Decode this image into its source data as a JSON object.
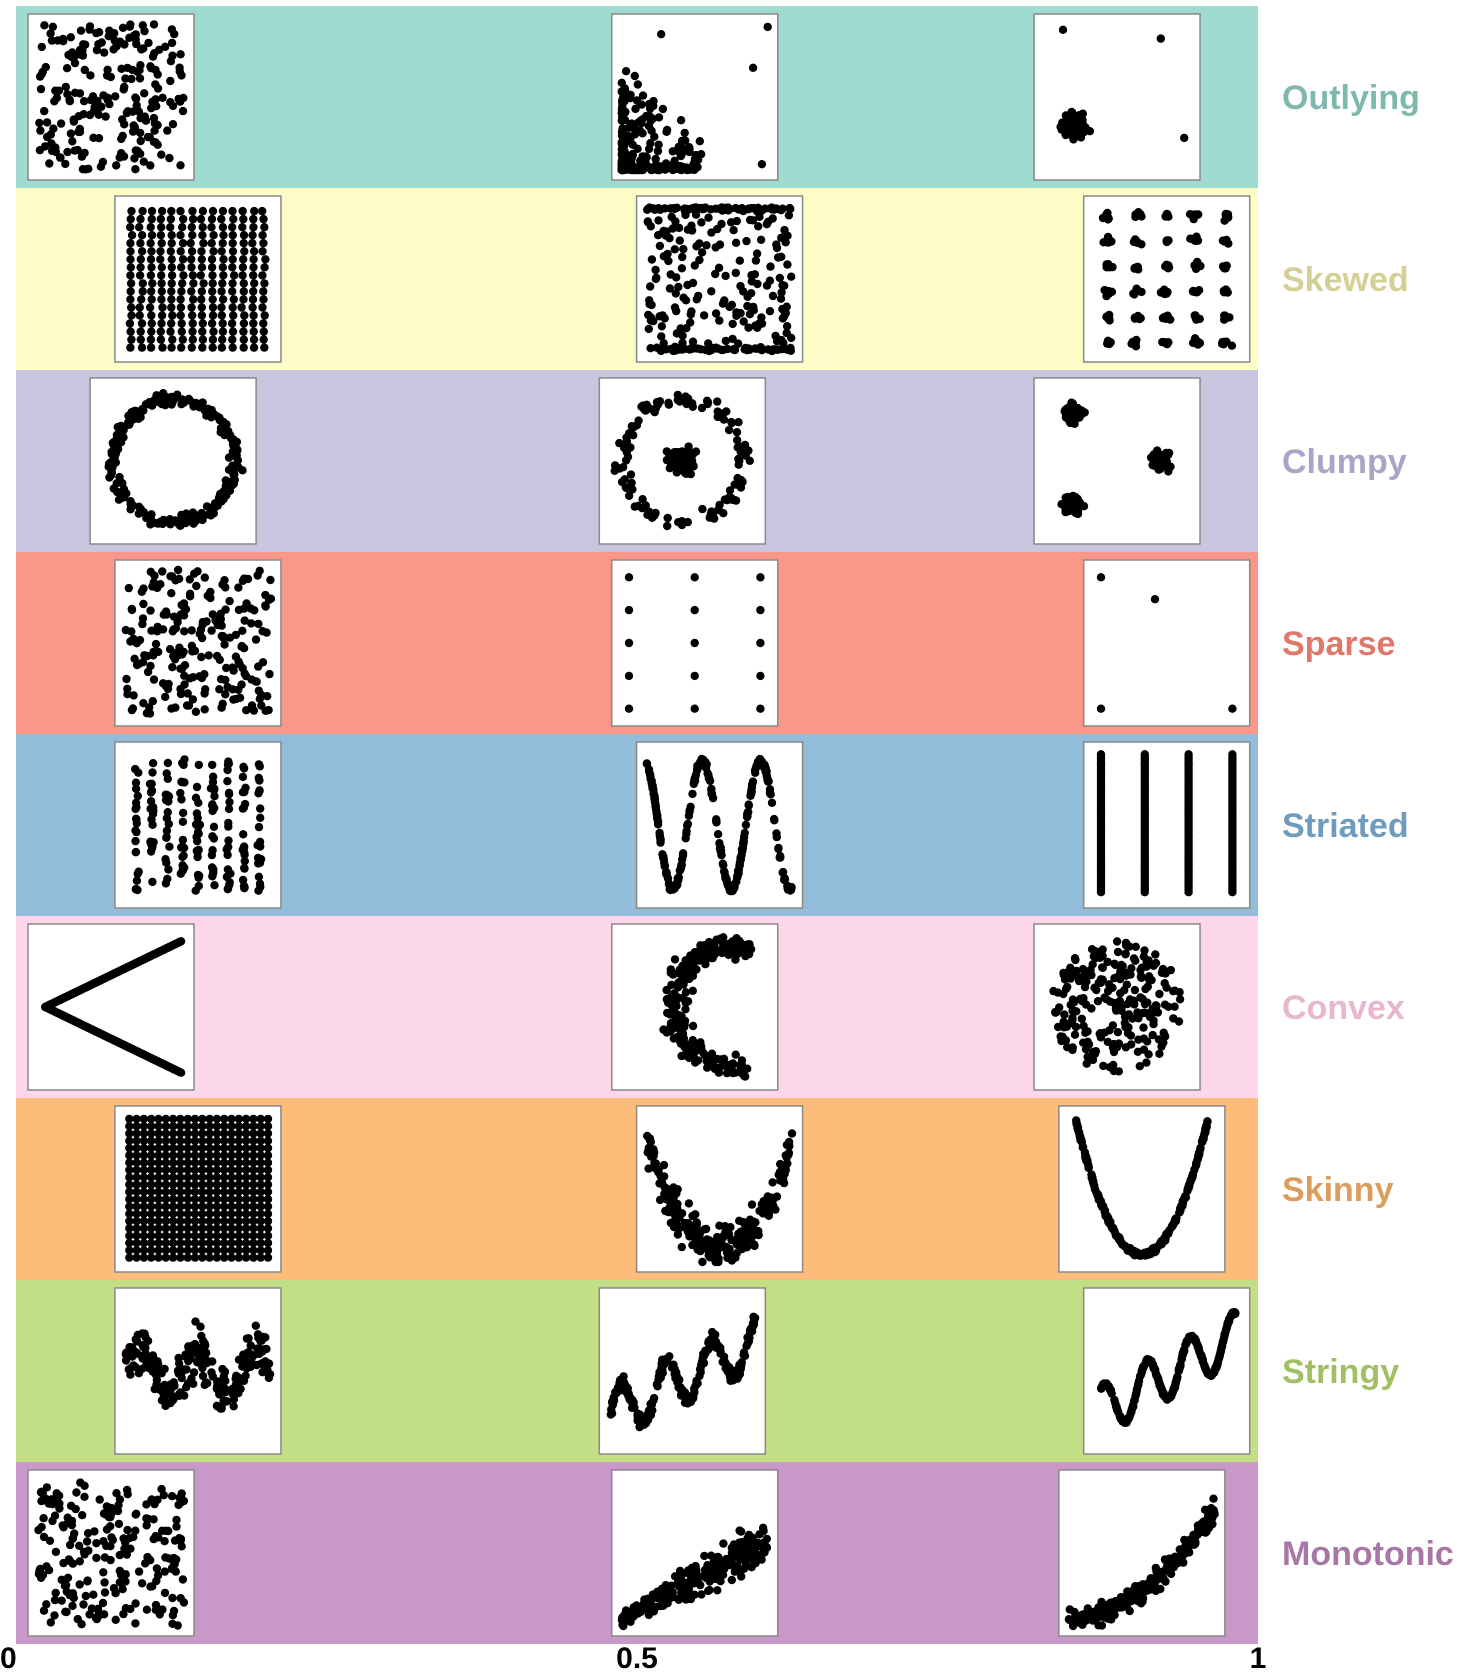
{
  "chart_data": {
    "type": "scatter",
    "title": "",
    "xlabel": "",
    "ylabel": "",
    "xlim": [
      0,
      1
    ],
    "x_ticks": [
      {
        "value": 0,
        "label": "0"
      },
      {
        "value": 0.5,
        "label": "0.5"
      },
      {
        "value": 1,
        "label": "1"
      }
    ],
    "rows": [
      {
        "name": "Outlying",
        "band_color": "#a0dbd1",
        "label_color": "#7fb8ad",
        "thumbnails": [
          {
            "x": 0.0,
            "pattern": "uniform"
          },
          {
            "x": 0.47,
            "pattern": "corner-decay"
          },
          {
            "x": 0.81,
            "pattern": "cluster-outliers"
          }
        ]
      },
      {
        "name": "Skewed",
        "band_color": "#fdfcc7",
        "label_color": "#d4cf94",
        "thumbnails": [
          {
            "x": 0.07,
            "pattern": "dense-grid-columns"
          },
          {
            "x": 0.49,
            "pattern": "band-edges"
          },
          {
            "x": 0.85,
            "pattern": "grid-clusters"
          }
        ]
      },
      {
        "name": "Clumpy",
        "band_color": "#c8c6df",
        "label_color": "#a8a5c6",
        "thumbnails": [
          {
            "x": 0.05,
            "pattern": "ring"
          },
          {
            "x": 0.46,
            "pattern": "ring-center"
          },
          {
            "x": 0.81,
            "pattern": "three-clumps"
          }
        ]
      },
      {
        "name": "Sparse",
        "band_color": "#fb9789",
        "label_color": "#e0786a",
        "thumbnails": [
          {
            "x": 0.07,
            "pattern": "uniform"
          },
          {
            "x": 0.47,
            "pattern": "sparse-grid"
          },
          {
            "x": 0.85,
            "pattern": "four-points"
          }
        ]
      },
      {
        "name": "Striated",
        "band_color": "#92bcd9",
        "label_color": "#6f9cbd",
        "thumbnails": [
          {
            "x": 0.07,
            "pattern": "striated-columns"
          },
          {
            "x": 0.49,
            "pattern": "zigzag"
          },
          {
            "x": 0.85,
            "pattern": "four-lines"
          }
        ]
      },
      {
        "name": "Convex",
        "band_color": "#fcd7e9",
        "label_color": "#e8b6cd",
        "thumbnails": [
          {
            "x": 0.0,
            "pattern": "chevron"
          },
          {
            "x": 0.47,
            "pattern": "crescent"
          },
          {
            "x": 0.81,
            "pattern": "disk"
          }
        ]
      },
      {
        "name": "Skinny",
        "band_color": "#fcbd7a",
        "label_color": "#dc9d5c",
        "thumbnails": [
          {
            "x": 0.07,
            "pattern": "full-grid"
          },
          {
            "x": 0.49,
            "pattern": "noisy-parabola"
          },
          {
            "x": 0.83,
            "pattern": "parabola"
          }
        ]
      },
      {
        "name": "Stringy",
        "band_color": "#c2df86",
        "label_color": "#a1c064",
        "thumbnails": [
          {
            "x": 0.07,
            "pattern": "noisy-wave"
          },
          {
            "x": 0.46,
            "pattern": "rising-wave-noisy"
          },
          {
            "x": 0.85,
            "pattern": "rising-wave"
          }
        ]
      },
      {
        "name": "Monotonic",
        "band_color": "#c997c8",
        "label_color": "#a877a6",
        "thumbnails": [
          {
            "x": 0.0,
            "pattern": "uniform"
          },
          {
            "x": 0.47,
            "pattern": "noisy-linear"
          },
          {
            "x": 0.83,
            "pattern": "exponential"
          }
        ]
      }
    ]
  }
}
